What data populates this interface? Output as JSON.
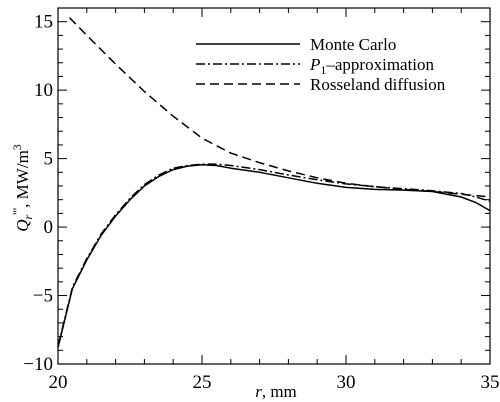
{
  "chart_data": {
    "type": "line",
    "xlabel": "r, mm",
    "ylabel": "Q_r''', MW/m^3",
    "xlim": [
      20,
      35
    ],
    "ylim": [
      -10,
      16
    ],
    "xticks": [
      20,
      25,
      30,
      35
    ],
    "yticks": [
      -10,
      -5,
      0,
      5,
      10,
      15
    ],
    "xtick_labels": [
      "20",
      "25",
      "30",
      "35"
    ],
    "ytick_labels": [
      "−10",
      "−5",
      "0",
      "5",
      "10",
      "15"
    ],
    "grid": false,
    "legend_position": "top-right",
    "series": [
      {
        "name": "Monte Carlo",
        "style": "solid",
        "x": [
          20,
          20.5,
          21,
          21.5,
          22,
          22.5,
          23,
          23.5,
          24,
          24.5,
          25,
          25.5,
          26,
          27,
          28,
          29,
          30,
          31,
          32,
          33,
          34,
          34.5,
          35
        ],
        "y": [
          -8.8,
          -4.5,
          -2.4,
          -0.6,
          0.8,
          2.0,
          3.0,
          3.7,
          4.2,
          4.45,
          4.55,
          4.5,
          4.3,
          4.0,
          3.6,
          3.2,
          2.9,
          2.75,
          2.7,
          2.6,
          2.2,
          1.8,
          1.2
        ]
      },
      {
        "name": "P₁–approximation",
        "style": "dashdot",
        "x": [
          20,
          20.5,
          21,
          21.5,
          22,
          22.5,
          23,
          23.5,
          24,
          24.5,
          25,
          25.5,
          26,
          27,
          28,
          29,
          30,
          31,
          32,
          33,
          34,
          34.5,
          35
        ],
        "y": [
          -8.7,
          -4.4,
          -2.3,
          -0.5,
          0.9,
          2.1,
          3.1,
          3.8,
          4.3,
          4.5,
          4.6,
          4.6,
          4.5,
          4.2,
          3.8,
          3.45,
          3.15,
          2.95,
          2.8,
          2.65,
          2.45,
          2.2,
          1.9
        ]
      },
      {
        "name": "Rosseland diffusion",
        "style": "dashed",
        "x": [
          20.4,
          21,
          22,
          23,
          24,
          25,
          26,
          27,
          28,
          29,
          30,
          31,
          32,
          33,
          34,
          35
        ],
        "y": [
          15.3,
          14.0,
          11.9,
          9.9,
          8.1,
          6.5,
          5.4,
          4.7,
          4.1,
          3.6,
          3.2,
          2.95,
          2.75,
          2.6,
          2.4,
          2.2
        ]
      }
    ]
  }
}
